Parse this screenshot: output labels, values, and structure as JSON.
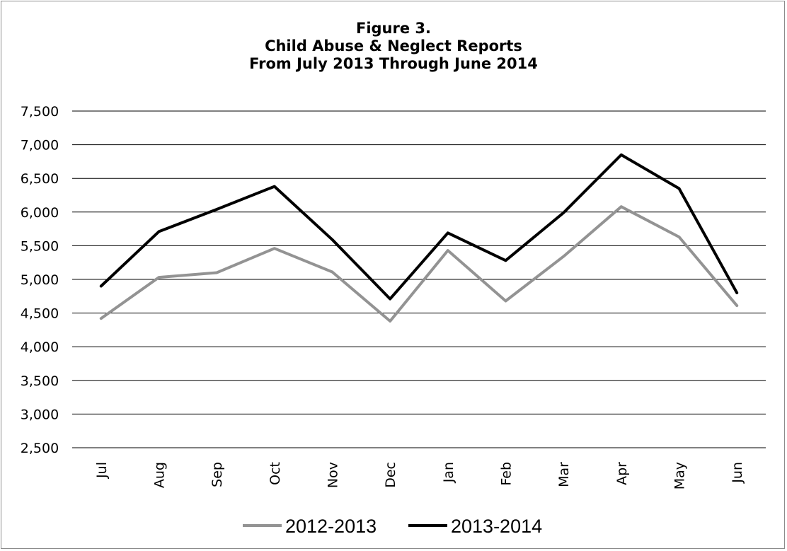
{
  "chart_data": {
    "type": "line",
    "title_lines": [
      "Figure 3.",
      "Child Abuse & Neglect Reports",
      "From  July 2013 Through June 2014"
    ],
    "categories": [
      "Jul",
      "Aug",
      "Sep",
      "Oct",
      "Nov",
      "Dec",
      "Jan",
      "Feb",
      "Mar",
      "Apr",
      "May",
      "Jun"
    ],
    "y_ticks": [
      "2,500",
      "3,000",
      "3,500",
      "4,000",
      "4,500",
      "5,000",
      "5,500",
      "6,000",
      "6,500",
      "7,000",
      "7,500"
    ],
    "ylim": [
      2500,
      7500
    ],
    "grid": true,
    "legend_position": "bottom",
    "series": [
      {
        "name": "2012-2013",
        "color": "#939393",
        "values": [
          4420,
          5030,
          5100,
          5460,
          5110,
          4380,
          5430,
          4680,
          5340,
          6080,
          5630,
          4610
        ]
      },
      {
        "name": "2013-2014",
        "color": "#000000",
        "values": [
          4900,
          5710,
          6040,
          6380,
          5590,
          4710,
          5690,
          5280,
          5990,
          6850,
          6350,
          4800
        ]
      }
    ]
  }
}
